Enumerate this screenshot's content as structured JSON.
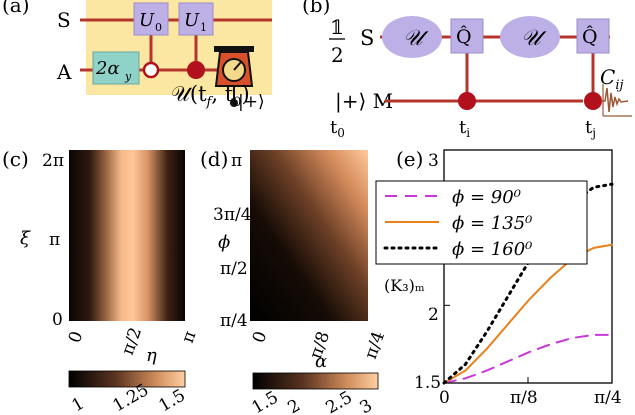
{
  "panel_a": {
    "label": "(a)",
    "wire_s": "S",
    "wire_a": "A",
    "gate_u0": "U",
    "gate_u0_sub": "0",
    "gate_u1": "U",
    "gate_u1_sub": "1",
    "rot_gate": "2α",
    "rot_gate_sub": "y",
    "evolution": "𝒰(t",
    "evolution_sub1": "f",
    "evolution_mid": ", t",
    "evolution_sub2": "0",
    "evolution_end": ")",
    "reset_state": "|+⟩",
    "colors": {
      "highlight": "#fbe7a1",
      "wire": "#b5342c",
      "gate": "#bdb0e6",
      "rot_gate": "#8fd3c8",
      "control": "#b1101c"
    }
  },
  "panel_b": {
    "label": "(b)",
    "prefactor_num": "𝟙",
    "prefactor_den": "2",
    "wire_s": "S",
    "wire_m": "|+⟩ M",
    "gate_u1": "𝒰",
    "gate_q1": "Q̂",
    "gate_u2": "𝒰",
    "gate_q2": "Q̂",
    "time_t0": "t",
    "time_t0_sub": "0",
    "time_ti": "t",
    "time_ti_sub": "i",
    "time_tj": "t",
    "time_tj_sub": "j",
    "correlator": "C",
    "correlator_sub": "ij"
  },
  "panel_c": {
    "label": "(c)",
    "ylabel": "ξ",
    "xlabel": "η",
    "yticks": [
      "2π",
      "π",
      "0"
    ],
    "xticks": [
      "0",
      "π/2",
      "π"
    ],
    "colorbar_ticks": [
      "1",
      "1.25",
      "1.5"
    ]
  },
  "panel_d": {
    "label": "(d)",
    "ylabel": "ϕ",
    "xlabel": "α",
    "yticks": [
      "π",
      "3π/4",
      "π/2",
      "π/4"
    ],
    "xticks": [
      "0",
      "π/8",
      "π/4"
    ],
    "colorbar_ticks": [
      "1.5",
      "2",
      "2.5",
      "3"
    ]
  },
  "panel_e": {
    "label": "(e)",
    "ylabel": "(K₃)ₘ",
    "yticks": [
      "3",
      "2",
      "1.5"
    ],
    "xticks": [
      "0",
      "π/8",
      "π/4"
    ],
    "legend": [
      {
        "text": "ϕ = 90⁰",
        "color": "#c837d8",
        "dash": "long"
      },
      {
        "text": "ϕ = 135⁰",
        "color": "#e8801b",
        "dash": "solid"
      },
      {
        "text": "ϕ = 160⁰",
        "color": "#000000",
        "dash": "dot"
      }
    ]
  },
  "chart_data": {
    "type": "line",
    "xlim": [
      0,
      0.7854
    ],
    "ylim": [
      1.5,
      3
    ],
    "series": [
      {
        "name": "ϕ = 90⁰",
        "color": "#c837d8",
        "x": [
          0,
          0.1,
          0.2,
          0.3,
          0.4,
          0.5,
          0.6,
          0.7,
          0.7854
        ],
        "y": [
          1.5,
          1.53,
          1.58,
          1.64,
          1.7,
          1.75,
          1.79,
          1.81,
          1.81
        ]
      },
      {
        "name": "ϕ = 135⁰",
        "color": "#e8801b",
        "x": [
          0,
          0.1,
          0.2,
          0.3,
          0.4,
          0.5,
          0.6,
          0.7,
          0.7854
        ],
        "y": [
          1.5,
          1.58,
          1.72,
          1.88,
          2.04,
          2.18,
          2.3,
          2.37,
          2.39
        ]
      },
      {
        "name": "ϕ = 160⁰",
        "color": "#000000",
        "x": [
          0,
          0.1,
          0.2,
          0.3,
          0.4,
          0.5,
          0.6,
          0.7,
          0.7854
        ],
        "y": [
          1.5,
          1.62,
          1.83,
          2.06,
          2.29,
          2.5,
          2.66,
          2.76,
          2.78
        ]
      }
    ]
  }
}
